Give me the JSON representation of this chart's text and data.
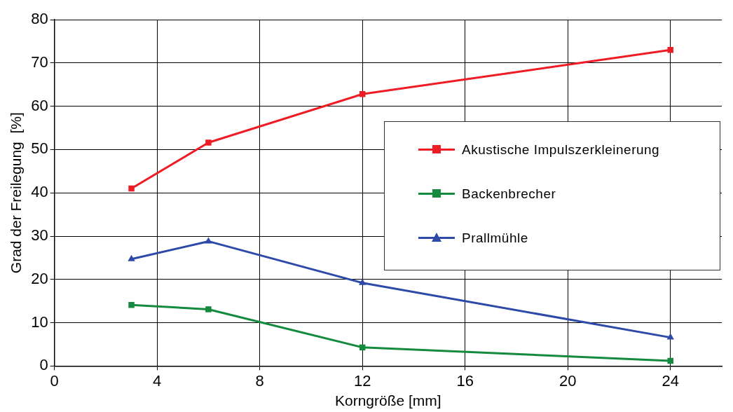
{
  "chart_data": {
    "type": "line",
    "xlabel": "Korngröße [mm]",
    "ylabel": "Grad der Freilegung  [%]",
    "x": [
      3,
      6,
      12,
      24
    ],
    "xlim": [
      0,
      26
    ],
    "xticks": [
      0,
      4,
      8,
      12,
      16,
      20,
      24
    ],
    "ylim": [
      0,
      80
    ],
    "yticks": [
      0,
      10,
      20,
      30,
      40,
      50,
      60,
      70,
      80
    ],
    "grid": true,
    "legend": "right",
    "line_style": "solid",
    "series": [
      {
        "name": "Akustische Impulszerkleinerung",
        "color": "#ee1c25",
        "marker": "square",
        "values": [
          41.0,
          51.6,
          62.8,
          73.0
        ]
      },
      {
        "name": "Backenbrecher",
        "color": "#138a3e",
        "marker": "square",
        "values": [
          14.1,
          13.1,
          4.3,
          1.2
        ]
      },
      {
        "name": "Prallmühle",
        "color": "#2e4aa8",
        "marker": "triangle",
        "values": [
          24.7,
          28.8,
          19.2,
          6.6
        ]
      }
    ]
  }
}
